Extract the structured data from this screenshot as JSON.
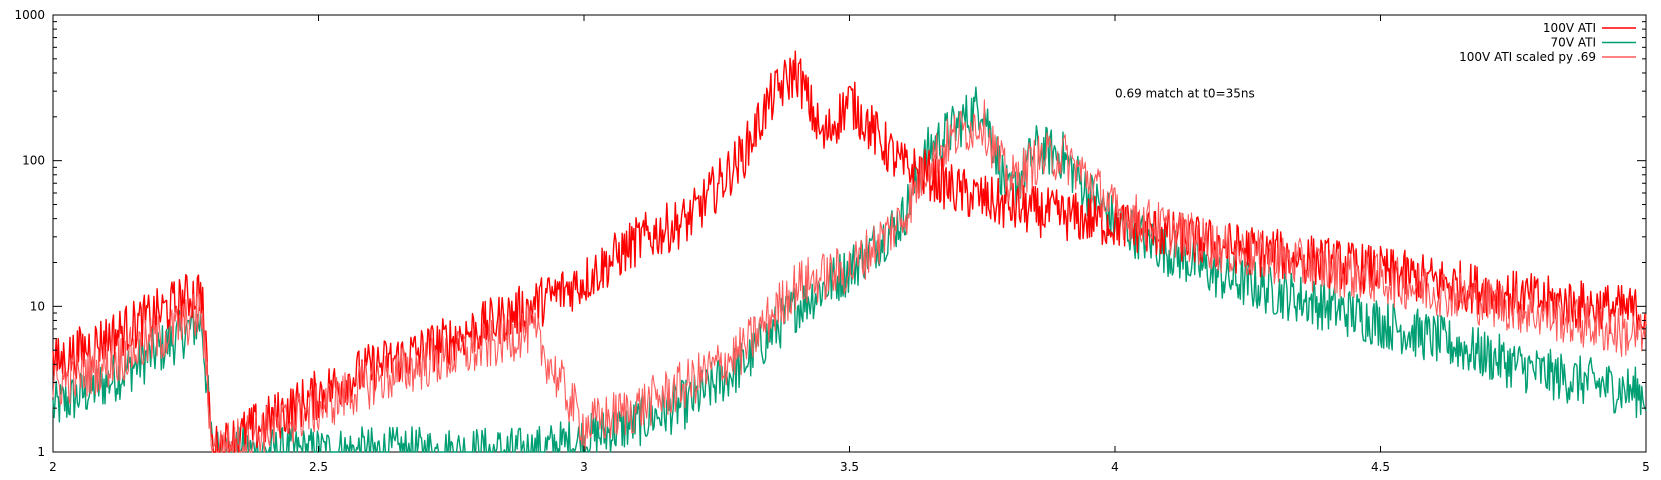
{
  "chart_data": {
    "type": "line",
    "xlim": [
      2,
      5
    ],
    "ylim": [
      1,
      1000
    ],
    "yscale": "log",
    "grid": false,
    "legend_position": "top-right",
    "x_ticks": [
      "2",
      "2.5",
      "3",
      "3.5",
      "4",
      "4.5",
      "5"
    ],
    "y_ticks": [
      "1",
      "10",
      "100",
      "1000"
    ],
    "annotation": {
      "text": "0.69 match at t0=35ns",
      "x": 4.0,
      "y": 290
    },
    "series": [
      {
        "name": "100V ATI",
        "color": "#ff0000",
        "x": [
          2.0,
          2.1,
          2.2,
          2.28,
          2.3,
          2.4,
          2.5,
          2.6,
          2.7,
          2.8,
          2.9,
          3.0,
          3.1,
          3.2,
          3.3,
          3.35,
          3.4,
          3.45,
          3.5,
          3.55,
          3.6,
          3.65,
          3.7,
          3.8,
          3.9,
          4.0,
          4.2,
          4.4,
          4.6,
          4.8,
          5.0
        ],
        "y": [
          4,
          6,
          9,
          13,
          1,
          1.6,
          2.5,
          3.8,
          5,
          7,
          10,
          15,
          28,
          40,
          110,
          260,
          420,
          140,
          260,
          150,
          90,
          80,
          62,
          48,
          42,
          37,
          26,
          20,
          15,
          11,
          9
        ]
      },
      {
        "name": "70V ATI",
        "color": "#009e73",
        "x": [
          2.0,
          2.1,
          2.2,
          2.28,
          2.3,
          2.4,
          2.5,
          2.6,
          2.7,
          2.8,
          2.9,
          3.0,
          3.1,
          3.2,
          3.3,
          3.4,
          3.5,
          3.6,
          3.65,
          3.7,
          3.75,
          3.8,
          3.85,
          3.9,
          3.95,
          4.0,
          4.1,
          4.2,
          4.4,
          4.6,
          4.8,
          5.0
        ],
        "y": [
          2,
          3,
          5,
          8,
          1,
          1,
          1,
          1,
          1,
          1,
          1,
          1.2,
          1.6,
          2.2,
          4,
          10,
          18,
          40,
          120,
          170,
          250,
          55,
          120,
          110,
          60,
          38,
          24,
          16,
          10,
          6,
          3.5,
          2.5
        ]
      },
      {
        "name": "100V ATI scaled py .69",
        "color": "#ff5a5a",
        "x": [
          2.0,
          2.1,
          2.2,
          2.28,
          2.3,
          2.4,
          2.5,
          2.6,
          2.7,
          2.8,
          2.9,
          3.0,
          3.1,
          3.2,
          3.3,
          3.4,
          3.5,
          3.6,
          3.65,
          3.7,
          3.75,
          3.8,
          3.85,
          3.9,
          3.95,
          4.0,
          4.2,
          4.4,
          4.6,
          4.8,
          5.0
        ],
        "y": [
          2.8,
          4,
          6,
          9,
          1,
          1.4,
          2,
          3,
          4,
          5,
          7,
          1.5,
          2,
          3,
          5,
          14,
          18,
          40,
          100,
          150,
          190,
          70,
          100,
          110,
          75,
          45,
          25,
          18,
          13,
          9,
          6
        ]
      }
    ]
  }
}
